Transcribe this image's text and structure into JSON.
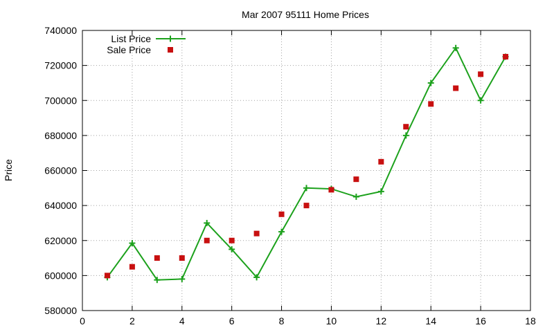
{
  "chart_data": {
    "type": "line",
    "title": "Mar 2007 95111 Home Prices",
    "ylabel": "Price",
    "xlabel": "",
    "xlim": [
      0,
      18
    ],
    "ylim": [
      580000,
      740000
    ],
    "xticks": [
      0,
      2,
      4,
      6,
      8,
      10,
      12,
      14,
      16,
      18
    ],
    "yticks": [
      580000,
      600000,
      620000,
      640000,
      660000,
      680000,
      700000,
      720000,
      740000
    ],
    "grid": true,
    "legend_position": "top-left",
    "series": [
      {
        "name": "List Price",
        "style": "linespoints",
        "color": "#1ca11c",
        "marker": "plus",
        "x": [
          1,
          2,
          3,
          4,
          5,
          6,
          7,
          8,
          9,
          10,
          11,
          12,
          13,
          14,
          15,
          16,
          17
        ],
        "y": [
          599000,
          618500,
          597500,
          598000,
          630000,
          615000,
          599000,
          625000,
          650000,
          649500,
          645000,
          648000,
          680000,
          710000,
          730000,
          700000,
          725000
        ]
      },
      {
        "name": "Sale Price",
        "style": "points",
        "color": "#c81010",
        "marker": "square",
        "x": [
          1,
          2,
          3,
          4,
          5,
          6,
          7,
          8,
          9,
          10,
          11,
          12,
          13,
          14,
          15,
          16,
          17
        ],
        "y": [
          600000,
          605000,
          610000,
          610000,
          620000,
          620000,
          624000,
          635000,
          640000,
          649000,
          655000,
          665000,
          685000,
          698000,
          707000,
          715000,
          725000
        ]
      }
    ]
  }
}
